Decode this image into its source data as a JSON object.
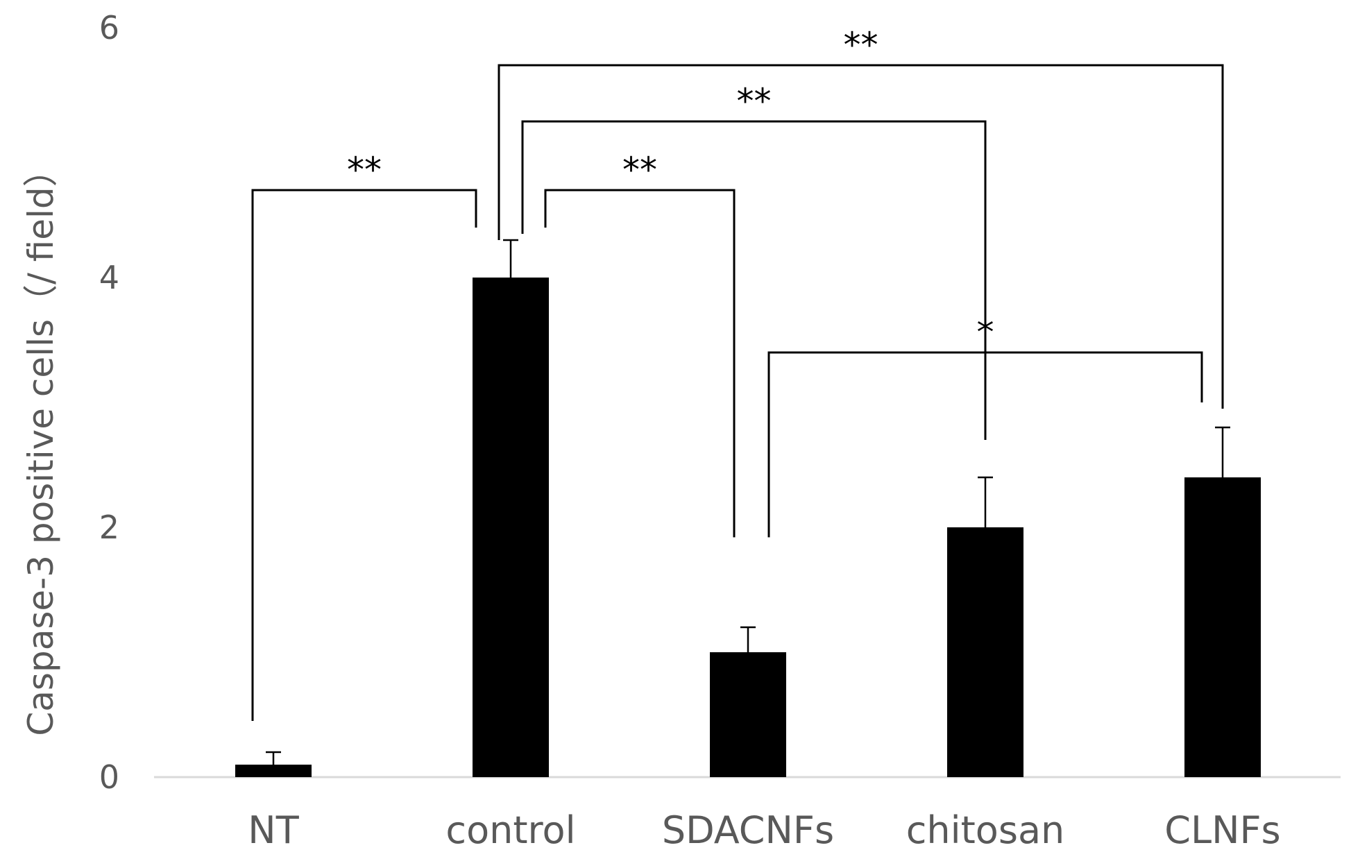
{
  "chart_data": {
    "type": "bar",
    "title": "",
    "xlabel": "",
    "ylabel": "Caspase-3 positive cells（/ field）",
    "ylim": [
      0,
      6
    ],
    "yticks": [
      0,
      2,
      4,
      6
    ],
    "grid": false,
    "legend": "none",
    "categories": [
      "NT",
      "control",
      "SDACNFs",
      "chitosan",
      "CLNFs"
    ],
    "values": [
      0.1,
      4.0,
      1.0,
      2.0,
      2.4
    ],
    "errors": [
      0.1,
      0.3,
      0.2,
      0.4,
      0.4
    ],
    "bar_color": "#000000",
    "significance": [
      {
        "from": 0,
        "to": 1,
        "label": "**",
        "level": 4.7,
        "drop_from": 0.45,
        "drop_to": 4.4
      },
      {
        "from": 1,
        "to": 2,
        "label": "**",
        "level": 4.7,
        "drop_from": 4.4,
        "drop_to": 1.92
      },
      {
        "from": 1,
        "to": 3,
        "label": "**",
        "level": 5.25,
        "drop_from": 4.35,
        "drop_to": 2.7
      },
      {
        "from": 1,
        "to": 4,
        "label": "**",
        "level": 5.7,
        "drop_from": 4.3,
        "drop_to": 2.95
      },
      {
        "from": 2,
        "to": 4,
        "label": "*",
        "level": 3.4,
        "drop_from": 1.92,
        "drop_to": 3.0
      }
    ]
  }
}
